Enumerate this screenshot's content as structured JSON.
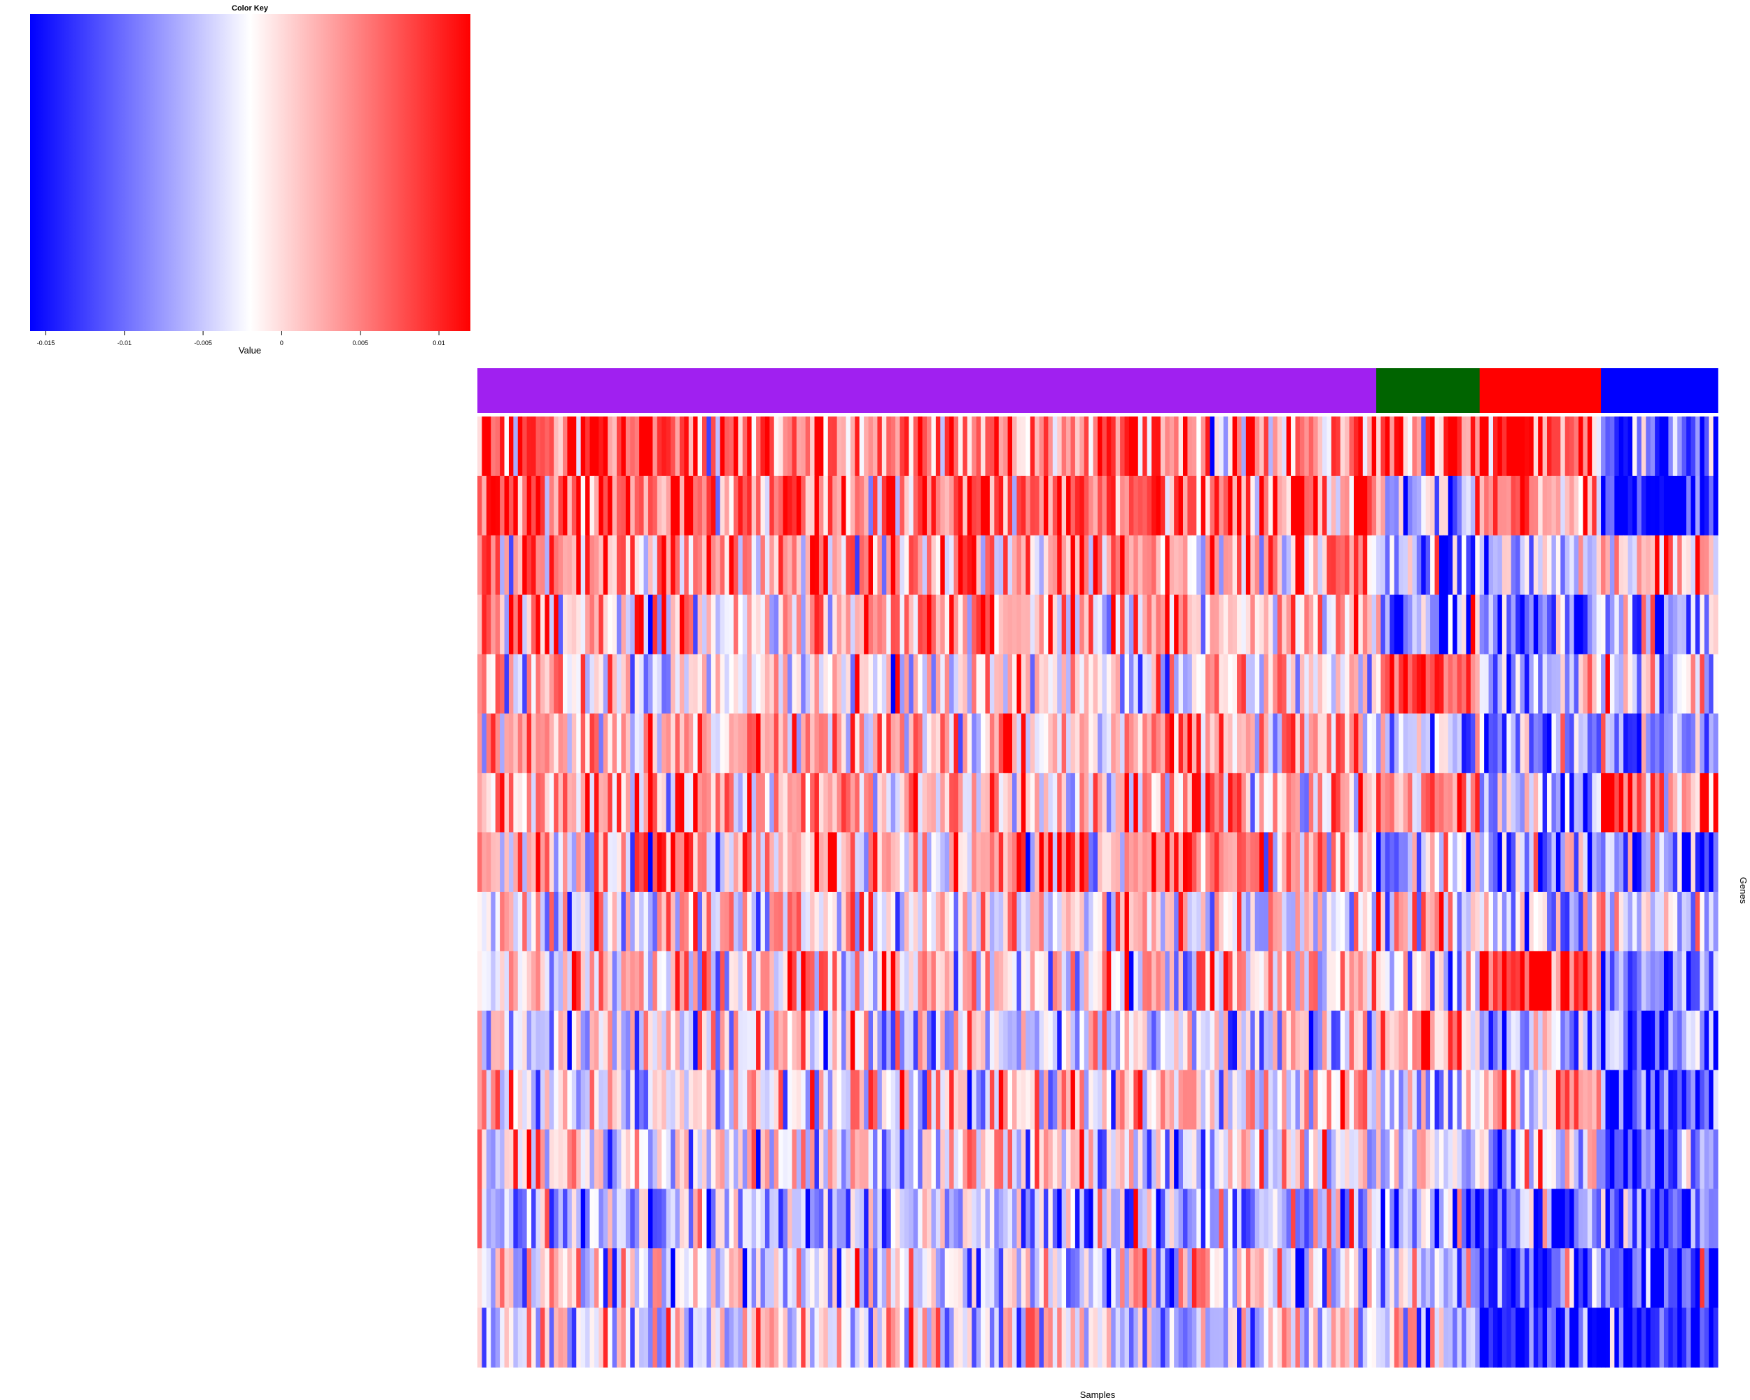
{
  "chart_data": {
    "type": "heatmap",
    "title": "",
    "xlabel": "Samples",
    "ylabel": "Genes",
    "color_key": {
      "title": "Color Key",
      "xlabel": "Value",
      "range": [
        -0.016,
        0.012
      ],
      "ticks": [
        -0.015,
        -0.01,
        -0.005,
        0,
        0.005,
        0.01
      ],
      "tick_labels": [
        "-0.015",
        "-0.01",
        "-0.005",
        "0",
        "0.005",
        "0.01"
      ],
      "midpoint": -0.002,
      "low_color": "#0000ff",
      "mid_color": "#ffffff",
      "high_color": "#ff0000"
    },
    "n_rows": 16,
    "n_cols": 276,
    "column_groups": [
      {
        "color": "#a020f0",
        "n": 200
      },
      {
        "color": "#006400",
        "n": 23
      },
      {
        "color": "#ff0000",
        "n": 27
      },
      {
        "color": "#0000ff",
        "n": 26
      }
    ],
    "row_means": [
      [
        0.005,
        0.005,
        0.008,
        -0.012
      ],
      [
        0.007,
        -0.004,
        0.005,
        -0.015
      ],
      [
        0.003,
        -0.006,
        -0.005,
        0.0
      ],
      [
        0.002,
        -0.007,
        -0.01,
        -0.008
      ],
      [
        -0.001,
        0.009,
        -0.004,
        -0.002
      ],
      [
        0.003,
        -0.006,
        -0.008,
        -0.007
      ],
      [
        0.002,
        0.004,
        -0.006,
        0.003
      ],
      [
        0.002,
        -0.005,
        -0.005,
        -0.008
      ],
      [
        -0.001,
        0.001,
        -0.005,
        -0.002
      ],
      [
        0.0,
        -0.004,
        0.01,
        -0.008
      ],
      [
        -0.003,
        0.003,
        -0.006,
        -0.01
      ],
      [
        -0.001,
        -0.005,
        0.004,
        -0.012
      ],
      [
        -0.002,
        -0.005,
        -0.003,
        -0.012
      ],
      [
        -0.005,
        -0.006,
        -0.01,
        -0.014
      ],
      [
        -0.003,
        -0.004,
        -0.013,
        -0.012
      ],
      [
        -0.002,
        -0.004,
        -0.014,
        -0.013
      ]
    ],
    "row_spread": 0.006,
    "legend_position": "top-left"
  }
}
